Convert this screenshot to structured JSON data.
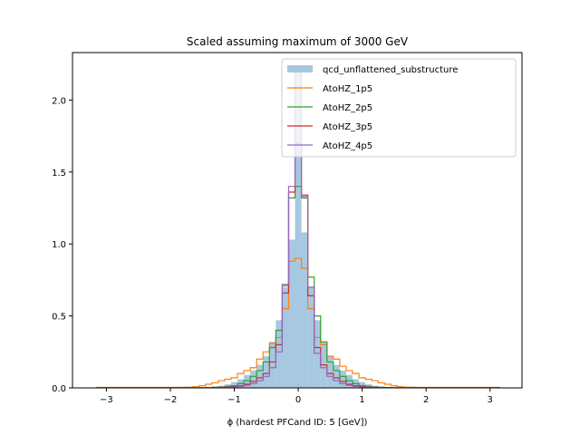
{
  "chart_data": {
    "type": "histogram",
    "title": "Scaled assuming maximum of 3000 GeV",
    "xlabel": "ϕ (hardest PFCand ID: 5 [GeV])",
    "ylabel": "",
    "xlim": [
      -3.53,
      3.5
    ],
    "ylim": [
      0,
      2.33
    ],
    "xticks": [
      -3,
      -2,
      -1,
      0,
      1,
      2,
      3
    ],
    "xtick_labels": [
      "−3",
      "−2",
      "−1",
      "0",
      "1",
      "2",
      "3"
    ],
    "yticks": [
      0.0,
      0.5,
      1.0,
      1.5,
      2.0
    ],
    "ytick_labels": [
      "0.0",
      "0.5",
      "1.0",
      "1.5",
      "2.0"
    ],
    "legend_position": "top-right",
    "bin_edges_start": -3.15,
    "bin_width": 0.1,
    "series": [
      {
        "name": "qcd_unflattened_substructure",
        "style": "filled",
        "color": "#a6c8e0",
        "values": [
          0,
          0,
          0,
          0,
          0,
          0,
          0,
          0,
          0,
          0,
          0,
          0,
          0,
          0,
          0,
          0.002,
          0.004,
          0.006,
          0.01,
          0.015,
          0.025,
          0.04,
          0.06,
          0.09,
          0.12,
          0.16,
          0.22,
          0.32,
          0.47,
          0.7,
          1.03,
          2.2,
          1.08,
          0.7,
          0.47,
          0.32,
          0.22,
          0.16,
          0.12,
          0.09,
          0.06,
          0.04,
          0.025,
          0.015,
          0.01,
          0.006,
          0.004,
          0.002,
          0,
          0,
          0,
          0,
          0,
          0,
          0,
          0,
          0,
          0,
          0,
          0,
          0,
          0,
          0
        ]
      },
      {
        "name": "AtoHZ_1p5",
        "style": "step",
        "color": "#ff7f0e",
        "values": [
          0.003,
          0.003,
          0.003,
          0.003,
          0.003,
          0.003,
          0.003,
          0.003,
          0.003,
          0.003,
          0.003,
          0.003,
          0.003,
          0.004,
          0.005,
          0.008,
          0.015,
          0.025,
          0.035,
          0.05,
          0.06,
          0.07,
          0.1,
          0.12,
          0.14,
          0.2,
          0.25,
          0.31,
          0.35,
          0.55,
          0.88,
          0.9,
          0.83,
          0.55,
          0.35,
          0.3,
          0.22,
          0.2,
          0.15,
          0.12,
          0.1,
          0.07,
          0.06,
          0.05,
          0.035,
          0.025,
          0.015,
          0.008,
          0.005,
          0.004,
          0.003,
          0.003,
          0.003,
          0.003,
          0.003,
          0.003,
          0.003,
          0.003,
          0.003,
          0.003,
          0.003,
          0.003,
          0.003
        ]
      },
      {
        "name": "AtoHZ_2p5",
        "style": "step",
        "color": "#2ca02c",
        "values": [
          0,
          0,
          0,
          0,
          0,
          0,
          0,
          0,
          0,
          0,
          0,
          0,
          0,
          0,
          0,
          0,
          0.001,
          0.002,
          0.004,
          0.006,
          0.01,
          0.015,
          0.03,
          0.05,
          0.08,
          0.12,
          0.18,
          0.28,
          0.4,
          0.71,
          1.32,
          1.4,
          1.32,
          0.77,
          0.5,
          0.32,
          0.18,
          0.12,
          0.08,
          0.05,
          0.03,
          0.015,
          0.01,
          0.006,
          0.004,
          0.002,
          0.001,
          0,
          0,
          0,
          0,
          0,
          0,
          0,
          0,
          0,
          0,
          0,
          0,
          0,
          0,
          0,
          0
        ]
      },
      {
        "name": "AtoHZ_3p5",
        "style": "step",
        "color": "#d62728",
        "values": [
          0,
          0,
          0,
          0,
          0,
          0,
          0,
          0,
          0,
          0,
          0,
          0,
          0,
          0,
          0,
          0,
          0,
          0.001,
          0.002,
          0.004,
          0.006,
          0.01,
          0.015,
          0.025,
          0.045,
          0.07,
          0.1,
          0.18,
          0.3,
          0.66,
          1.36,
          1.7,
          1.34,
          0.64,
          0.28,
          0.16,
          0.1,
          0.07,
          0.045,
          0.025,
          0.015,
          0.01,
          0.006,
          0.004,
          0.002,
          0.001,
          0,
          0,
          0,
          0,
          0,
          0,
          0,
          0,
          0,
          0,
          0,
          0,
          0,
          0,
          0,
          0,
          0
        ]
      },
      {
        "name": "AtoHZ_4p5",
        "style": "step",
        "color": "#9467bd",
        "values": [
          0,
          0,
          0,
          0,
          0,
          0,
          0,
          0,
          0,
          0,
          0,
          0,
          0,
          0,
          0,
          0,
          0,
          0,
          0.001,
          0.002,
          0.004,
          0.006,
          0.01,
          0.018,
          0.03,
          0.05,
          0.08,
          0.14,
          0.25,
          0.72,
          1.4,
          2.2,
          1.33,
          0.7,
          0.24,
          0.14,
          0.08,
          0.05,
          0.03,
          0.018,
          0.01,
          0.006,
          0.004,
          0.002,
          0.001,
          0,
          0,
          0,
          0,
          0,
          0,
          0,
          0,
          0,
          0,
          0,
          0,
          0,
          0,
          0,
          0,
          0,
          0
        ]
      }
    ]
  }
}
